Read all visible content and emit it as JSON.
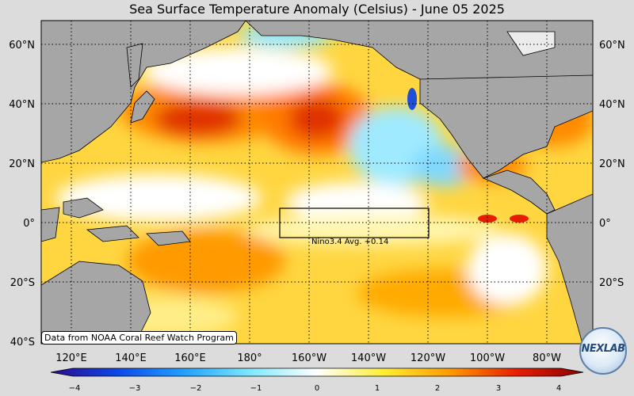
{
  "title": "Sea Surface Temperature Anomaly (Celsius) - June 05 2025",
  "lat_labels": [
    "60°N",
    "40°N",
    "20°N",
    "0°",
    "20°S",
    "40°S"
  ],
  "lon_labels": [
    "120°E",
    "140°E",
    "160°E",
    "180°",
    "160°W",
    "140°W",
    "120°W",
    "100°W",
    "80°W"
  ],
  "colorbar": {
    "ticks": [
      "−4",
      "−3",
      "−2",
      "−1",
      "0",
      "1",
      "2",
      "3",
      "4"
    ],
    "colors": [
      "#2b0a8f",
      "#0d47e8",
      "#22a0ff",
      "#7fe8ff",
      "#ffffff",
      "#ffee33",
      "#ff9a00",
      "#e81d00",
      "#8a0000"
    ]
  },
  "nino_box_label": "Nino3.4 Avg. +0.14",
  "credit": "Data from NOAA Coral Reef Watch Program",
  "logo_text": "NEXLAB",
  "map_colors": {
    "ocean_base": "#ffe45c",
    "land": "#a6a6a6",
    "warm": "#ff8a00",
    "hot": "#e02a00",
    "cool": "#8fe6ff"
  }
}
